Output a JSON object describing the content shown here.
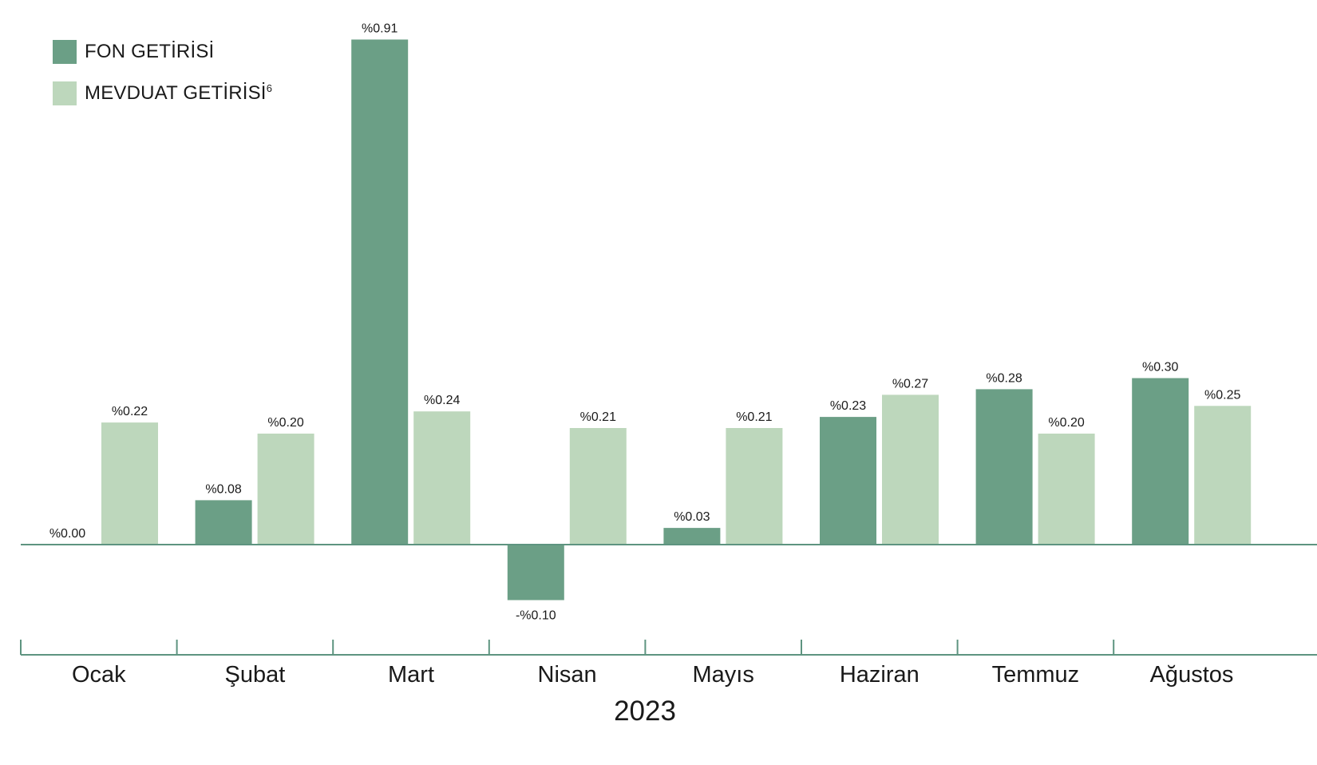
{
  "chart_data": {
    "type": "bar",
    "categories": [
      "Ocak",
      "Şubat",
      "Mart",
      "Nisan",
      "Mayıs",
      "Haziran",
      "Temmuz",
      "Ağustos"
    ],
    "series": [
      {
        "name": "FON GETİRİSİ",
        "color": "#6b9f86",
        "values": [
          0.0,
          0.08,
          0.91,
          -0.1,
          0.03,
          0.23,
          0.28,
          0.3
        ],
        "labels": [
          "%0.00",
          "%0.08",
          "%0.91",
          "-%0.10",
          "%0.03",
          "%0.23",
          "%0.28",
          "%0.30"
        ]
      },
      {
        "name": "MEVDUAT GETİRİSİ",
        "name_superscript": "6",
        "color": "#bdd7bc",
        "values": [
          0.22,
          0.2,
          0.24,
          0.21,
          0.21,
          0.27,
          0.2,
          0.25
        ],
        "labels": [
          "%0.22",
          "%0.20",
          "%0.24",
          "%0.21",
          "%0.21",
          "%0.27",
          "%0.20",
          "%0.25"
        ]
      }
    ],
    "xlabel": "2023",
    "ylabel": "",
    "title": "",
    "ylim": [
      -0.1,
      0.91
    ],
    "grid": false,
    "legend_position": "top-left",
    "axis_color": "#5e9480"
  }
}
